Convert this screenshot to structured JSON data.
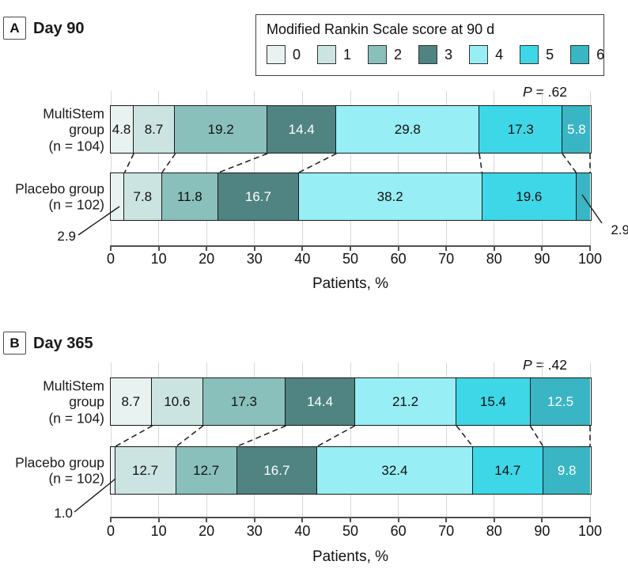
{
  "style": {
    "segment_colors": [
      "#e8f2f1",
      "#cbe4e1",
      "#8ac0bb",
      "#4f8482",
      "#97eef4",
      "#3ed7e8",
      "#39b5c3"
    ],
    "segment_border": "#1a1a1a",
    "white_label_scores": [
      3,
      6
    ],
    "gridline_color": "#d8d8d8",
    "axis_color": "#4f4f4f"
  },
  "chart_data": [
    {
      "type": "bar",
      "stacked": true,
      "orientation": "horizontal",
      "panel_label": "A",
      "title": "Day 90",
      "p_label": {
        "italic": "P",
        "rest": " = .62"
      },
      "xlabel": "Patients, %",
      "xlim": [
        0,
        100
      ],
      "ticks": [
        0,
        10,
        20,
        30,
        40,
        50,
        60,
        70,
        80,
        90,
        100
      ],
      "grid": true,
      "legend_title": "Modified Rankin Scale score at 90 d",
      "legend_entries": [
        "0",
        "1",
        "2",
        "3",
        "4",
        "5",
        "6"
      ],
      "legend_position": "top-right",
      "categories": [
        "MultiStem group (n = 104)",
        "Placebo group (n = 102)"
      ],
      "category_display": [
        "MultiStem\ngroup\n(n = 104)",
        "Placebo group\n(n = 102)"
      ],
      "series": [
        {
          "name": "0",
          "values": [
            4.8,
            2.9
          ]
        },
        {
          "name": "1",
          "values": [
            8.7,
            7.8
          ]
        },
        {
          "name": "2",
          "values": [
            19.2,
            11.8
          ]
        },
        {
          "name": "3",
          "values": [
            14.4,
            16.7
          ]
        },
        {
          "name": "4",
          "values": [
            29.8,
            38.2
          ]
        },
        {
          "name": "5",
          "values": [
            17.3,
            19.6
          ]
        },
        {
          "name": "6",
          "values": [
            5.8,
            2.9
          ]
        }
      ],
      "hidden_value_labels": [
        [],
        [
          0,
          6
        ]
      ],
      "callouts": [
        {
          "text": "2.9",
          "category": 1,
          "score": 0,
          "side": "left"
        },
        {
          "text": "2.9",
          "category": 1,
          "score": 6,
          "side": "right"
        }
      ]
    },
    {
      "type": "bar",
      "stacked": true,
      "orientation": "horizontal",
      "panel_label": "B",
      "title": "Day 365",
      "p_label": {
        "italic": "P",
        "rest": " = .42"
      },
      "xlabel": "Patients, %",
      "xlim": [
        0,
        100
      ],
      "ticks": [
        0,
        10,
        20,
        30,
        40,
        50,
        60,
        70,
        80,
        90,
        100
      ],
      "grid": true,
      "legend_title": null,
      "legend_entries": null,
      "categories": [
        "MultiStem group (n = 104)",
        "Placebo group (n = 102)"
      ],
      "category_display": [
        "MultiStem\ngroup\n(n = 104)",
        "Placebo group\n(n = 102)"
      ],
      "series": [
        {
          "name": "0",
          "values": [
            8.7,
            1.0
          ]
        },
        {
          "name": "1",
          "values": [
            10.6,
            12.7
          ]
        },
        {
          "name": "2",
          "values": [
            17.3,
            12.7
          ]
        },
        {
          "name": "3",
          "values": [
            14.4,
            16.7
          ]
        },
        {
          "name": "4",
          "values": [
            21.2,
            32.4
          ]
        },
        {
          "name": "5",
          "values": [
            15.4,
            14.7
          ]
        },
        {
          "name": "6",
          "values": [
            12.5,
            9.8
          ]
        }
      ],
      "hidden_value_labels": [
        [],
        [
          0
        ]
      ],
      "callouts": [
        {
          "text": "1.0",
          "category": 1,
          "score": 0,
          "side": "left"
        }
      ]
    }
  ]
}
